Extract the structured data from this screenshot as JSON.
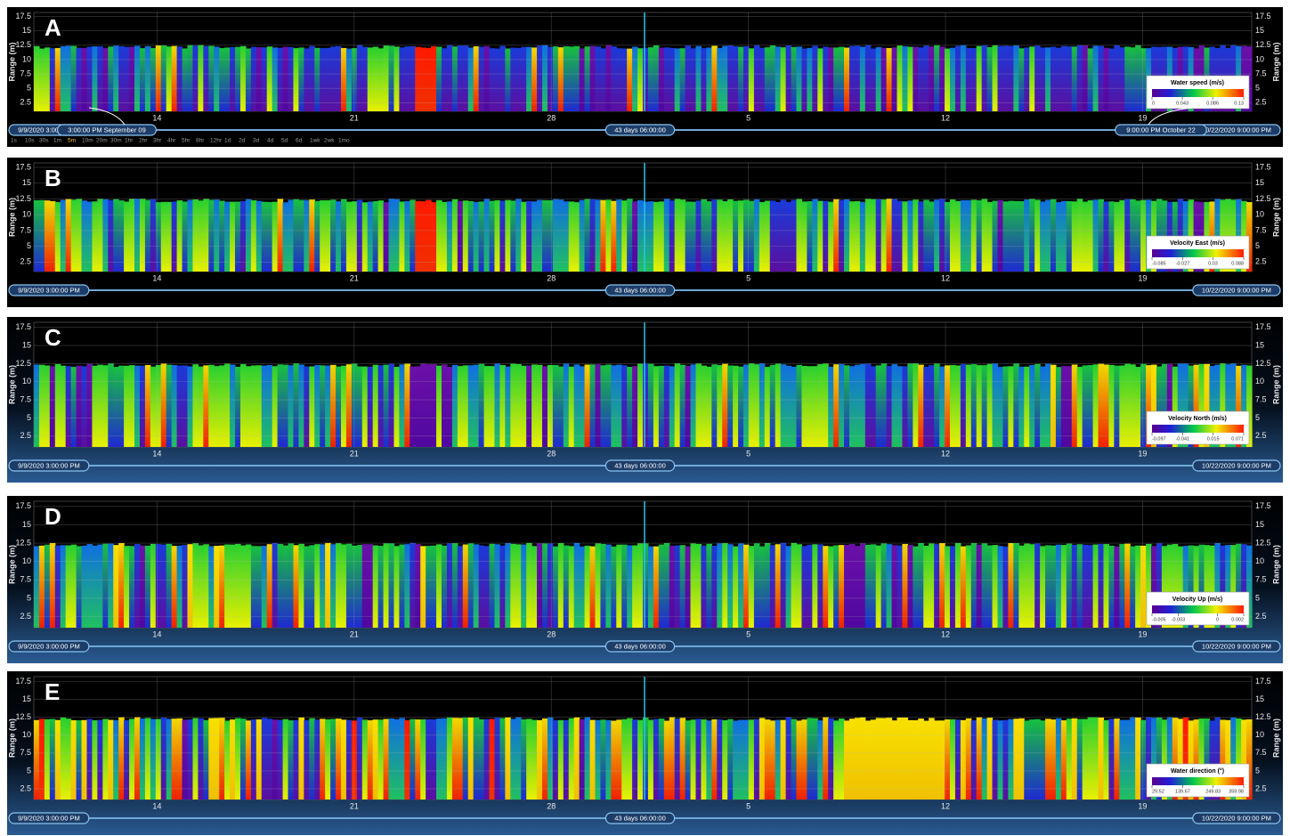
{
  "panels": [
    {
      "label": "A",
      "y_label": "Range (m)",
      "ylim": [
        1,
        18.2
      ],
      "yticks": [
        2.5,
        5,
        7.5,
        10,
        12.5,
        15,
        17.5
      ],
      "x_ticks": [
        "14",
        "21",
        "28",
        "5",
        "12",
        "19"
      ],
      "colorbar": {
        "title": "Water speed (m/s)",
        "ticks": [
          0,
          0.043,
          0.086,
          0.13
        ]
      },
      "time_start": "9/9/2020 3:00:00 PM",
      "time_span": "43 days 06:00:00",
      "time_end": "10/22/2020 9:00:00 PM",
      "range_start": "3:00:00 PM  September 09",
      "range_end": "9:00:00 PM  October 22",
      "zoom_levels": [
        "1s",
        "10s",
        "30s",
        "1m",
        "5m",
        "10m",
        "20m",
        "30m",
        "1hr",
        "2hr",
        "3hr",
        "4hr",
        "5hr",
        "8hr",
        "12hr",
        "1d",
        "2d",
        "3d",
        "4d",
        "5d",
        "6d",
        "1wk",
        "2wk",
        "1mo"
      ]
    },
    {
      "label": "B",
      "y_label": "Range (m)",
      "ylim": [
        1,
        18.2
      ],
      "yticks": [
        2.5,
        5,
        7.5,
        10,
        12.5,
        15,
        17.5
      ],
      "x_ticks": [
        "14",
        "21",
        "28",
        "5",
        "12",
        "19"
      ],
      "colorbar": {
        "title": "Velocity East (m/s)",
        "ticks": [
          -0.085,
          -0.027,
          0.03,
          0.088
        ]
      },
      "time_start": "9/9/2020 3:00:00 PM",
      "time_span": "43 days 06:00:00",
      "time_end": "10/22/2020 9:00:00 PM"
    },
    {
      "label": "C",
      "y_label": "Range (m)",
      "ylim": [
        1,
        18.2
      ],
      "yticks": [
        2.5,
        5,
        7.5,
        10,
        12.5,
        15,
        17.5
      ],
      "x_ticks": [
        "14",
        "21",
        "28",
        "5",
        "12",
        "19"
      ],
      "colorbar": {
        "title": "Velocity North (m/s)",
        "ticks": [
          -0.097,
          -0.041,
          0.015,
          0.071
        ]
      },
      "time_start": "9/9/2020 3:00:00 PM",
      "time_span": "43 days 06:00:00",
      "time_end": "10/22/2020 9:00:00 PM"
    },
    {
      "label": "D",
      "y_label": "Range (m)",
      "ylim": [
        1,
        18.2
      ],
      "yticks": [
        2.5,
        5,
        7.5,
        10,
        12.5,
        15,
        17.5
      ],
      "x_ticks": [
        "14",
        "21",
        "28",
        "5",
        "12",
        "19"
      ],
      "colorbar": {
        "title": "Velocity Up (m/s)",
        "ticks": [
          -0.005,
          -0.003,
          0,
          0.002
        ]
      },
      "time_start": "9/9/2020 3:00:00 PM",
      "time_span": "43 days 06:00:00",
      "time_end": "10/22/2020 9:00:00 PM"
    },
    {
      "label": "E",
      "y_label": "Range (m)",
      "ylim": [
        1,
        18.2
      ],
      "yticks": [
        2.5,
        5,
        7.5,
        10,
        12.5,
        15,
        17.5
      ],
      "x_ticks": [
        "14",
        "21",
        "28",
        "5",
        "12",
        "19"
      ],
      "colorbar": {
        "title": "Water direction (°)",
        "ticks": [
          29.52,
          139.67,
          249.83,
          359.98
        ]
      },
      "time_start": "9/9/2020 3:00:00 PM",
      "time_span": "43 days 06:00:00",
      "time_end": "10/22/2020 9:00:00 PM"
    }
  ]
}
